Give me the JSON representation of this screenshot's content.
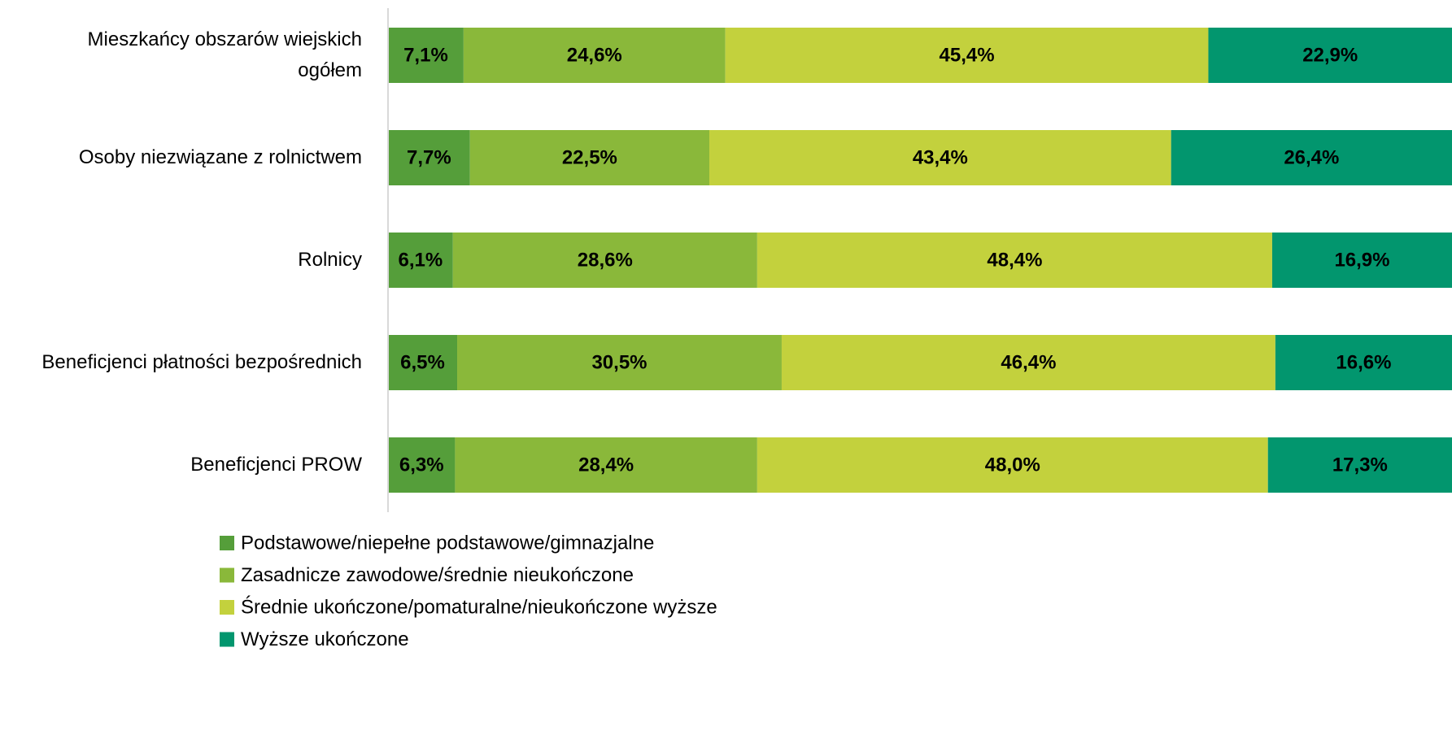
{
  "chart_data": {
    "type": "bar",
    "orientation": "horizontal",
    "stacked": true,
    "categories": [
      "Mieszkańcy obszarów wiejskich ogółem",
      "Osoby niezwiązane z rolnictwem",
      "Rolnicy",
      "Beneficjenci płatności bezpośrednich",
      "Beneficjenci PROW"
    ],
    "xlim": [
      0,
      100
    ],
    "series": [
      {
        "name": "Podstawowe/niepełne podstawowe/gimnazjalne",
        "color": "#559e3a",
        "values": [
          7.1,
          7.7,
          6.1,
          6.5,
          6.3
        ],
        "value_labels": [
          "7,1%",
          "7,7%",
          "6,1%",
          "6,5%",
          "6,3%"
        ]
      },
      {
        "name": "Zasadnicze zawodowe/średnie nieukończone",
        "color": "#8ab83a",
        "values": [
          24.6,
          22.5,
          28.6,
          30.5,
          28.4
        ],
        "value_labels": [
          "24,6%",
          "22,5%",
          "28,6%",
          "30,5%",
          "28,4%"
        ]
      },
      {
        "name": "Średnie ukończone/pomaturalne/nieukończone wyższe",
        "color": "#c3d13d",
        "values": [
          45.4,
          43.4,
          48.4,
          46.4,
          48.0
        ],
        "value_labels": [
          "45,4%",
          "43,4%",
          "48,4%",
          "46,4%",
          "48,0%"
        ]
      },
      {
        "name": "Wyższe ukończone",
        "color": "#02966e",
        "values": [
          22.9,
          26.4,
          16.9,
          16.6,
          17.3
        ],
        "value_labels": [
          "22,9%",
          "26,4%",
          "16,9%",
          "16,6%",
          "17,3%"
        ]
      }
    ],
    "legend": "bottom"
  }
}
